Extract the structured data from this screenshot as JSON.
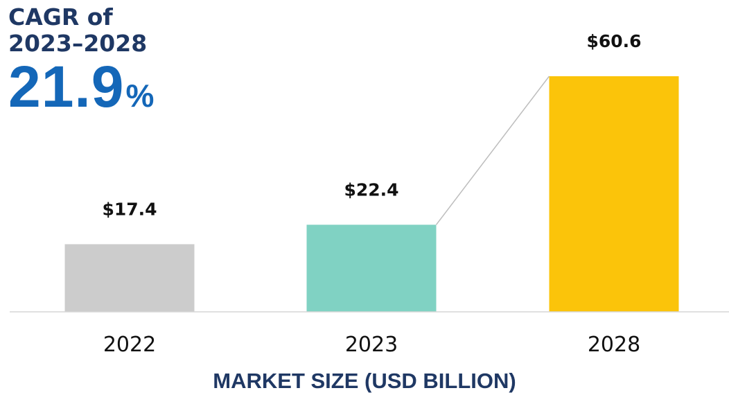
{
  "cagr": {
    "label": "CAGR of\n2023–2028",
    "value": "21.9",
    "unit": "%",
    "label_color": "#1f3864",
    "value_color": "#1467b8"
  },
  "chart_data": {
    "type": "bar",
    "categories": [
      "2022",
      "2023",
      "2028"
    ],
    "values": [
      17.4,
      22.4,
      60.6
    ],
    "value_labels": [
      "$17.4",
      "$22.4",
      "$60.6"
    ],
    "colors": [
      "#cccccc",
      "#80d2c3",
      "#fbc40a"
    ],
    "title": "",
    "xlabel": "MARKET SIZE (USD BILLION)",
    "ylabel": "",
    "ylim": [
      0,
      60.6
    ],
    "grid": false,
    "legend": "none",
    "connector": {
      "from": "2023",
      "to": "2028"
    }
  }
}
